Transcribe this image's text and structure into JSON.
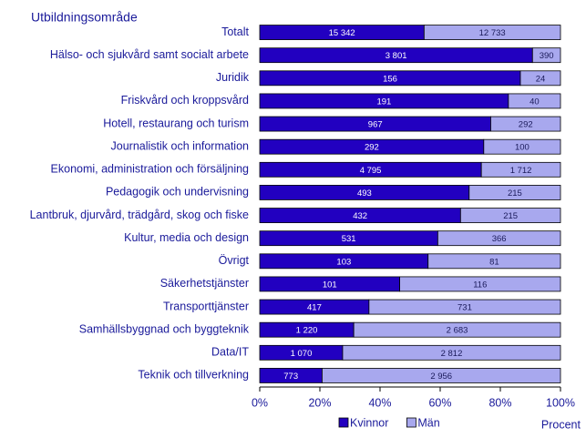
{
  "chart_data": {
    "type": "bar",
    "orientation": "horizontal",
    "stacked": "percent",
    "title": "Utbildningsområde",
    "x_label": "Procent",
    "categories": [
      "Totalt",
      "Hälso- och sjukvård samt socialt arbete",
      "Juridik",
      "Friskvård och kroppsvård",
      "Hotell, restaurang och turism",
      "Journalistik och information",
      "Ekonomi, administration och försäljning",
      "Pedagogik och undervisning",
      "Lantbruk, djurvård, trädgård, skog och fiske",
      "Kultur, media och design",
      "Övrigt",
      "Säkerhetstjänster",
      "Transporttjänster",
      "Samhällsbyggnad och byggteknik",
      "Data/IT",
      "Teknik och tillverkning"
    ],
    "series": [
      {
        "name": "Kvinnor",
        "color": "#2200c0",
        "values": [
          15342,
          3801,
          156,
          191,
          967,
          292,
          4795,
          493,
          432,
          531,
          103,
          101,
          417,
          1220,
          1070,
          773
        ],
        "value_labels": [
          "15 342",
          "3 801",
          "156",
          "191",
          "967",
          "292",
          "4 795",
          "493",
          "432",
          "531",
          "103",
          "101",
          "417",
          "1 220",
          "1 070",
          "773"
        ]
      },
      {
        "name": "Män",
        "color": "#a8a8ee",
        "values": [
          12733,
          390,
          24,
          40,
          292,
          100,
          1712,
          215,
          215,
          366,
          81,
          116,
          731,
          2683,
          2812,
          2956
        ],
        "value_labels": [
          "12 733",
          "390",
          "24",
          "40",
          "292",
          "100",
          "1 712",
          "215",
          "215",
          "366",
          "81",
          "116",
          "731",
          "2 683",
          "2 812",
          "2 956"
        ]
      }
    ],
    "xlim": [
      0,
      100
    ],
    "xticks": [
      {
        "value": 0,
        "label": "0%"
      },
      {
        "value": 20,
        "label": "20%"
      },
      {
        "value": 40,
        "label": "40%"
      },
      {
        "value": 60,
        "label": "60%"
      },
      {
        "value": 80,
        "label": "80%"
      },
      {
        "value": 100,
        "label": "100%"
      }
    ],
    "legend": "bottom"
  }
}
